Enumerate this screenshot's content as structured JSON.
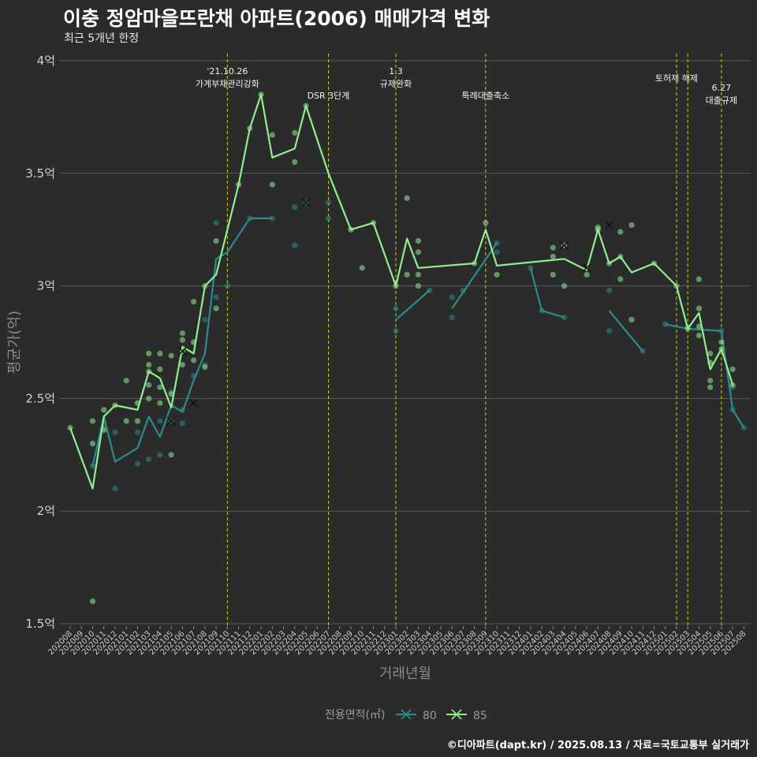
{
  "header": {
    "title": "이충 정암마을뜨란채 아파트(2006) 매매가격 변화",
    "subtitle": "최근 5개년 한정"
  },
  "footer": {
    "caption": "©디아파트(dapt.kr) / 2025.08.13 / 자료=국토교통부 실거래가"
  },
  "colors": {
    "background": "#2b2b2b",
    "grid": "#5a5a5a",
    "event_line": "#c8d400",
    "series_80": "#2a8c8c",
    "series_85": "#90ee90"
  },
  "chart_data": {
    "type": "line",
    "xlabel": "거래년월",
    "ylabel": "평균가(억)",
    "ylim": [
      1.5,
      4.0
    ],
    "yticks": [
      1.5,
      2.0,
      2.5,
      3.0,
      3.5,
      4.0
    ],
    "ytick_labels": [
      "1.5억",
      "2억",
      "2.5억",
      "3억",
      "3.5억",
      "4억"
    ],
    "grid": true,
    "legend_title": "전용면적(㎡)",
    "legend_position": "bottom",
    "months": [
      "202008",
      "202009",
      "202010",
      "202011",
      "202012",
      "202101",
      "202102",
      "202103",
      "202104",
      "202105",
      "202106",
      "202107",
      "202108",
      "202109",
      "202110",
      "202111",
      "202112",
      "202201",
      "202202",
      "202203",
      "202204",
      "202205",
      "202206",
      "202207",
      "202208",
      "202209",
      "202210",
      "202211",
      "202212",
      "202301",
      "202302",
      "202303",
      "202304",
      "202305",
      "202306",
      "202307",
      "202308",
      "202309",
      "202310",
      "202311",
      "202312",
      "202401",
      "202402",
      "202403",
      "202404",
      "202405",
      "202406",
      "202407",
      "202408",
      "202409",
      "202410",
      "202411",
      "202412",
      "202501",
      "202502",
      "202503",
      "202504",
      "202505",
      "202506",
      "202507",
      "202508"
    ],
    "events": [
      {
        "x": "202110",
        "label": "'21.10.26\n가계부채관리강화"
      },
      {
        "x": "202207",
        "label": "DSR 3단계"
      },
      {
        "x": "202301",
        "label": "1.3\n규제완화"
      },
      {
        "x": "202309",
        "label": "특례대출축소"
      },
      {
        "x": "202502",
        "label": "토허제 해제"
      },
      {
        "x": "202503",
        "label": ""
      },
      {
        "x": "202506",
        "label": "6.27\n대출규제"
      }
    ],
    "series": [
      {
        "name": "80",
        "line": [
          [
            [
              "202010",
              2.2
            ],
            [
              "202011",
              2.42
            ],
            [
              "202012",
              2.22
            ],
            [
              "202102",
              2.28
            ],
            [
              "202103",
              2.42
            ],
            [
              "202104",
              2.33
            ],
            [
              "202105",
              2.47
            ],
            [
              "202106",
              2.44
            ],
            [
              "202107",
              2.58
            ],
            [
              "202108",
              2.7
            ],
            [
              "202109",
              3.12
            ],
            [
              "202110",
              3.15
            ],
            [
              "202112",
              3.3
            ],
            [
              "202202",
              3.3
            ]
          ],
          [
            [
              "202301",
              2.85
            ],
            [
              "202304",
              2.98
            ]
          ],
          [
            [
              "202306",
              2.9
            ],
            [
              "202310",
              3.19
            ]
          ],
          [
            [
              "202401",
              3.08
            ],
            [
              "202402",
              2.89
            ],
            [
              "202404",
              2.86
            ]
          ],
          [
            [
              "202408",
              2.89
            ],
            [
              "202411",
              2.71
            ]
          ],
          [
            [
              "202501",
              2.83
            ],
            [
              "202503",
              2.81
            ],
            [
              "202506",
              2.8
            ],
            [
              "202507",
              2.45
            ],
            [
              "202508",
              2.37
            ]
          ]
        ],
        "points": [
          [
            "202010",
            2.2
          ],
          [
            "202011",
            2.38
          ],
          [
            "202012",
            2.35
          ],
          [
            "202012",
            2.1
          ],
          [
            "202102",
            2.21
          ],
          [
            "202102",
            2.35
          ],
          [
            "202103",
            2.23
          ],
          [
            "202104",
            2.25
          ],
          [
            "202104",
            2.4
          ],
          [
            "202105",
            2.4
          ],
          [
            "202105",
            2.53
          ],
          [
            "202106",
            2.39
          ],
          [
            "202106",
            2.45
          ],
          [
            "202107",
            2.6
          ],
          [
            "202108",
            2.65
          ],
          [
            "202108",
            2.85
          ],
          [
            "202109",
            2.95
          ],
          [
            "202109",
            3.28
          ],
          [
            "202110",
            3.0
          ],
          [
            "202112",
            3.3
          ],
          [
            "202202",
            3.3
          ],
          [
            "202204",
            3.18
          ],
          [
            "202204",
            3.35
          ],
          [
            "202205",
            3.37
          ],
          [
            "202207",
            3.37
          ],
          [
            "202207",
            3.3
          ],
          [
            "202301",
            2.8
          ],
          [
            "202301",
            2.9
          ],
          [
            "202304",
            2.98
          ],
          [
            "202306",
            2.86
          ],
          [
            "202306",
            2.95
          ],
          [
            "202307",
            2.98
          ],
          [
            "202310",
            3.19
          ],
          [
            "202310",
            3.15
          ],
          [
            "202401",
            3.08
          ],
          [
            "202402",
            2.89
          ],
          [
            "202404",
            2.86
          ],
          [
            "202408",
            2.98
          ],
          [
            "202408",
            2.8
          ],
          [
            "202411",
            2.71
          ],
          [
            "202501",
            2.83
          ],
          [
            "202503",
            2.82
          ],
          [
            "202506",
            2.8
          ],
          [
            "202507",
            2.45
          ],
          [
            "202507",
            2.55
          ],
          [
            "202508",
            2.37
          ]
        ],
        "cancelled": [
          [
            "202105",
            2.4
          ],
          [
            "202107",
            2.48
          ],
          [
            "202205",
            3.37
          ]
        ]
      },
      {
        "name": "85",
        "line": [
          [
            [
              "202008",
              2.37
            ],
            [
              "202010",
              2.1
            ],
            [
              "202011",
              2.42
            ],
            [
              "202012",
              2.47
            ],
            [
              "202102",
              2.45
            ],
            [
              "202103",
              2.62
            ],
            [
              "202104",
              2.59
            ],
            [
              "202105",
              2.46
            ],
            [
              "202106",
              2.73
            ],
            [
              "202107",
              2.7
            ],
            [
              "202108",
              3.0
            ],
            [
              "202109",
              3.05
            ],
            [
              "202110",
              3.25
            ],
            [
              "202111",
              3.45
            ],
            [
              "202112",
              3.7
            ],
            [
              "202201",
              3.85
            ],
            [
              "202202",
              3.57
            ],
            [
              "202204",
              3.61
            ],
            [
              "202205",
              3.8
            ],
            [
              "202207",
              3.5
            ],
            [
              "202209",
              3.25
            ],
            [
              "202211",
              3.28
            ],
            [
              "202301",
              3.0
            ],
            [
              "202302",
              3.21
            ],
            [
              "202303",
              3.08
            ],
            [
              "202308",
              3.1
            ],
            [
              "202309",
              3.25
            ],
            [
              "202310",
              3.09
            ],
            [
              "202404",
              3.12
            ],
            [
              "202406",
              3.07
            ],
            [
              "202407",
              3.25
            ],
            [
              "202408",
              3.1
            ],
            [
              "202409",
              3.13
            ],
            [
              "202410",
              3.06
            ],
            [
              "202412",
              3.1
            ],
            [
              "202502",
              3.0
            ],
            [
              "202503",
              2.81
            ],
            [
              "202504",
              2.88
            ],
            [
              "202505",
              2.63
            ],
            [
              "202506",
              2.72
            ],
            [
              "202507",
              2.56
            ]
          ]
        ],
        "points": [
          [
            "202008",
            2.37
          ],
          [
            "202010",
            2.3
          ],
          [
            "202010",
            2.4
          ],
          [
            "202010",
            1.6
          ],
          [
            "202011",
            2.45
          ],
          [
            "202011",
            2.36
          ],
          [
            "202012",
            2.47
          ],
          [
            "202101",
            2.4
          ],
          [
            "202101",
            2.58
          ],
          [
            "202102",
            2.4
          ],
          [
            "202102",
            2.48
          ],
          [
            "202103",
            2.5
          ],
          [
            "202103",
            2.56
          ],
          [
            "202103",
            2.62
          ],
          [
            "202103",
            2.65
          ],
          [
            "202103",
            2.7
          ],
          [
            "202104",
            2.48
          ],
          [
            "202104",
            2.55
          ],
          [
            "202104",
            2.63
          ],
          [
            "202104",
            2.7
          ],
          [
            "202105",
            2.25
          ],
          [
            "202105",
            2.52
          ],
          [
            "202105",
            2.69
          ],
          [
            "202106",
            2.65
          ],
          [
            "202106",
            2.71
          ],
          [
            "202106",
            2.76
          ],
          [
            "202106",
            2.79
          ],
          [
            "202107",
            2.67
          ],
          [
            "202107",
            2.75
          ],
          [
            "202107",
            2.93
          ],
          [
            "202108",
            2.64
          ],
          [
            "202108",
            3.0
          ],
          [
            "202109",
            2.9
          ],
          [
            "202109",
            3.2
          ],
          [
            "202111",
            3.45
          ],
          [
            "202112",
            3.7
          ],
          [
            "202201",
            3.85
          ],
          [
            "202202",
            3.45
          ],
          [
            "202202",
            3.67
          ],
          [
            "202204",
            3.55
          ],
          [
            "202204",
            3.68
          ],
          [
            "202205",
            3.8
          ],
          [
            "202209",
            3.25
          ],
          [
            "202210",
            3.08
          ],
          [
            "202211",
            3.28
          ],
          [
            "202301",
            3.0
          ],
          [
            "202302",
            3.05
          ],
          [
            "202302",
            3.39
          ],
          [
            "202303",
            3.0
          ],
          [
            "202303",
            3.05
          ],
          [
            "202303",
            3.15
          ],
          [
            "202303",
            3.2
          ],
          [
            "202308",
            3.1
          ],
          [
            "202309",
            3.28
          ],
          [
            "202310",
            3.05
          ],
          [
            "202403",
            3.05
          ],
          [
            "202403",
            3.13
          ],
          [
            "202403",
            3.17
          ],
          [
            "202404",
            3.0
          ],
          [
            "202404",
            3.18
          ],
          [
            "202406",
            3.05
          ],
          [
            "202407",
            3.25
          ],
          [
            "202407",
            3.26
          ],
          [
            "202408",
            3.1
          ],
          [
            "202409",
            3.03
          ],
          [
            "202409",
            3.13
          ],
          [
            "202409",
            3.24
          ],
          [
            "202410",
            2.85
          ],
          [
            "202410",
            3.27
          ],
          [
            "202412",
            3.1
          ],
          [
            "202502",
            3.0
          ],
          [
            "202503",
            2.81
          ],
          [
            "202504",
            2.78
          ],
          [
            "202504",
            2.82
          ],
          [
            "202504",
            2.9
          ],
          [
            "202504",
            3.03
          ],
          [
            "202505",
            2.55
          ],
          [
            "202505",
            2.58
          ],
          [
            "202505",
            2.66
          ],
          [
            "202505",
            2.7
          ],
          [
            "202506",
            2.72
          ],
          [
            "202506",
            2.75
          ],
          [
            "202507",
            2.56
          ],
          [
            "202507",
            2.63
          ]
        ],
        "cancelled": [
          [
            "202106",
            2.71
          ],
          [
            "202404",
            3.18
          ],
          [
            "202406",
            3.08
          ],
          [
            "202408",
            3.27
          ]
        ]
      }
    ]
  }
}
